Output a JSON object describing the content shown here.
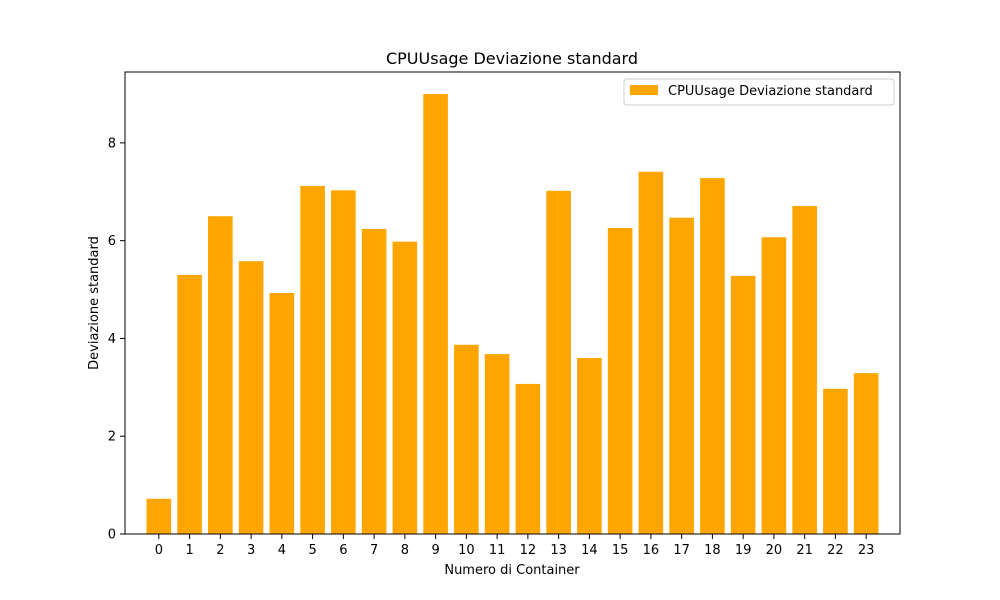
{
  "chart_data": {
    "type": "bar",
    "title": "CPUUsage Deviazione standard",
    "xlabel": "Numero di Container",
    "ylabel": "Deviazione standard",
    "categories": [
      "0",
      "1",
      "2",
      "3",
      "4",
      "5",
      "6",
      "7",
      "8",
      "9",
      "10",
      "11",
      "12",
      "13",
      "14",
      "15",
      "16",
      "17",
      "18",
      "19",
      "20",
      "21",
      "22",
      "23"
    ],
    "series": [
      {
        "name": "CPUUsage Deviazione standard",
        "color": "#ffa500",
        "values": [
          0.72,
          5.3,
          6.5,
          5.58,
          4.93,
          7.12,
          7.03,
          6.24,
          5.98,
          9.0,
          3.87,
          3.68,
          3.07,
          7.02,
          3.6,
          6.26,
          7.41,
          6.47,
          7.28,
          5.28,
          6.07,
          6.71,
          2.97,
          3.29
        ]
      }
    ],
    "ylim": [
      0,
      9.45
    ],
    "yticks": [
      0,
      2,
      4,
      6,
      8
    ],
    "grid": false,
    "legend": "top-right"
  }
}
